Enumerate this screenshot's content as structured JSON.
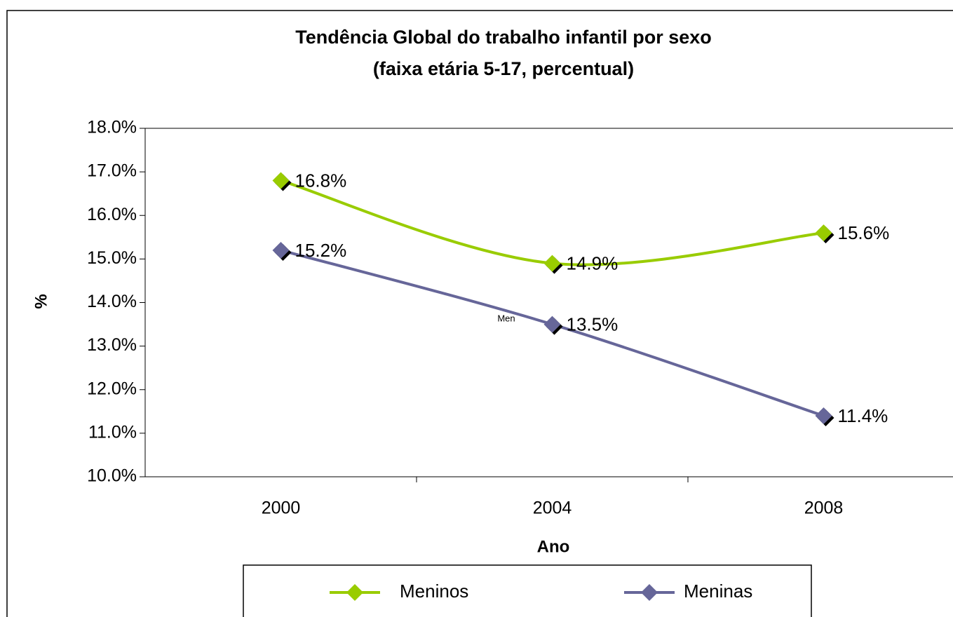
{
  "chart_data": {
    "type": "line",
    "title": [
      "Tendência Global do trabalho infantil por sexo",
      "(faixa etária 5-17, percentual)"
    ],
    "x_label": "Ano",
    "y_label": "%",
    "annotation": "Men",
    "categories": [
      "2000",
      "2004",
      "2008"
    ],
    "series": [
      {
        "name": "Meninos",
        "color": "#99cc00",
        "values": [
          16.8,
          14.9,
          15.6
        ],
        "value_labels": [
          "16.8%",
          "14.9%",
          "15.6%"
        ]
      },
      {
        "name": "Meninas",
        "color": "#666699",
        "values": [
          15.2,
          13.5,
          11.4
        ],
        "value_labels": [
          "15.2%",
          "13.5%",
          "11.4%"
        ]
      }
    ],
    "ylim": [
      10,
      18
    ],
    "yticks": [
      {
        "value": 10,
        "label": "10.0%"
      },
      {
        "value": 11,
        "label": "11.0%"
      },
      {
        "value": 12,
        "label": "12.0%"
      },
      {
        "value": 13,
        "label": "13.0%"
      },
      {
        "value": 14,
        "label": "14.0%"
      },
      {
        "value": 15,
        "label": "15.0%"
      },
      {
        "value": 16,
        "label": "16.0%"
      },
      {
        "value": 17,
        "label": "17.0%"
      },
      {
        "value": 18,
        "label": "18.0%"
      }
    ],
    "grid": false,
    "legend": "bottom"
  }
}
